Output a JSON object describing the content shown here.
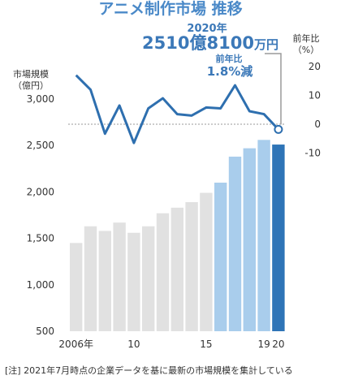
{
  "chart_data": {
    "type": "bar",
    "title": "アニメ制作市場 推移",
    "left_axis": {
      "label_line1": "市場規模",
      "label_line2": "（億円）",
      "ticks": [
        "3,000",
        "2,500",
        "2,000",
        "1,500",
        "1,000",
        "500"
      ],
      "tick_values": [
        3000,
        2500,
        2000,
        1500,
        1000,
        500
      ],
      "ylim": [
        500,
        3300
      ]
    },
    "right_axis": {
      "label_line1": "前年比",
      "label_line2": "（%）",
      "ticks": [
        "20",
        "10",
        "0",
        "-10"
      ],
      "tick_values": [
        20,
        10,
        0,
        -10
      ],
      "ylim": [
        -15.5,
        23.5
      ]
    },
    "x_labels": [
      {
        "year": 2006,
        "text": "2006年"
      },
      {
        "year": 2010,
        "text": "10"
      },
      {
        "year": 2015,
        "text": "15"
      },
      {
        "year": 2019,
        "text": "19"
      },
      {
        "year": 2020,
        "text": "20"
      }
    ],
    "years": [
      2006,
      2007,
      2008,
      2009,
      2010,
      2011,
      2012,
      2013,
      2014,
      2015,
      2016,
      2017,
      2018,
      2019,
      2020
    ],
    "series": [
      {
        "kind": "bar",
        "values": [
          1450,
          1630,
          1580,
          1670,
          1560,
          1630,
          1770,
          1830,
          1890,
          1990,
          2100,
          2380,
          2470,
          2560,
          2510
        ],
        "colors": [
          "#e1e1e1",
          "#e1e1e1",
          "#e1e1e1",
          "#e1e1e1",
          "#e1e1e1",
          "#e1e1e1",
          "#e1e1e1",
          "#e1e1e1",
          "#e1e1e1",
          "#e1e1e1",
          "#a9cdec",
          "#a9cdec",
          "#a9cdec",
          "#a9cdec",
          "#2e74b7"
        ]
      },
      {
        "kind": "line",
        "values": [
          17,
          12,
          -3.3,
          6.5,
          -6.5,
          5.5,
          9,
          3.5,
          3,
          5.8,
          5.5,
          13.5,
          4.5,
          3.5,
          -1.8
        ],
        "color": "#2e6faf"
      }
    ],
    "annotation": {
      "year_label": "2020年",
      "value_main": "2510億8100",
      "value_unit": "万円",
      "change_label": "前年比",
      "change_value": "1.8%減"
    },
    "note": "[注] 2021年7月時点の企業データを基に最新の市場規模を集計している"
  }
}
